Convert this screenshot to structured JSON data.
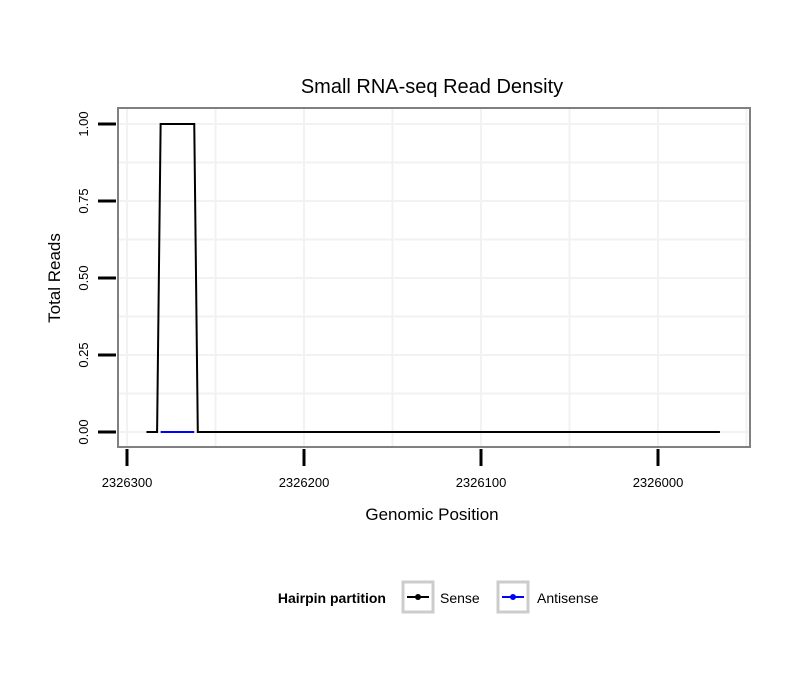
{
  "chart_data": {
    "type": "line",
    "title": "Small RNA-seq Read Density",
    "xlabel": "Genomic Position",
    "ylabel": "Total Reads",
    "xlim": [
      2326305,
      2325965
    ],
    "x_reversed": true,
    "ylim": [
      -0.05,
      1.05
    ],
    "xticks": [
      2326300,
      2326200,
      2326100,
      2326000
    ],
    "xtick_labels": [
      "2326300",
      "2326200",
      "2326100",
      "2326000"
    ],
    "yticks": [
      0,
      0.25,
      0.5,
      0.75,
      1.0
    ],
    "ytick_labels": [
      "0.00",
      "0.25",
      "0.50",
      "0.75",
      "1.00"
    ],
    "grid": true,
    "legend": {
      "title": "Hairpin partition",
      "placement": "bottom",
      "entries": [
        "Sense",
        "Antisense"
      ]
    },
    "series": [
      {
        "name": "Sense",
        "color": "#000000",
        "x": [
          2326289,
          2326283,
          2326281,
          2326262,
          2326260,
          2325965
        ],
        "y": [
          0,
          0,
          1,
          1,
          0,
          0
        ]
      },
      {
        "name": "Antisense",
        "color": "#0000ff",
        "x": [
          2326281,
          2326262
        ],
        "y": [
          0,
          0
        ]
      }
    ]
  }
}
